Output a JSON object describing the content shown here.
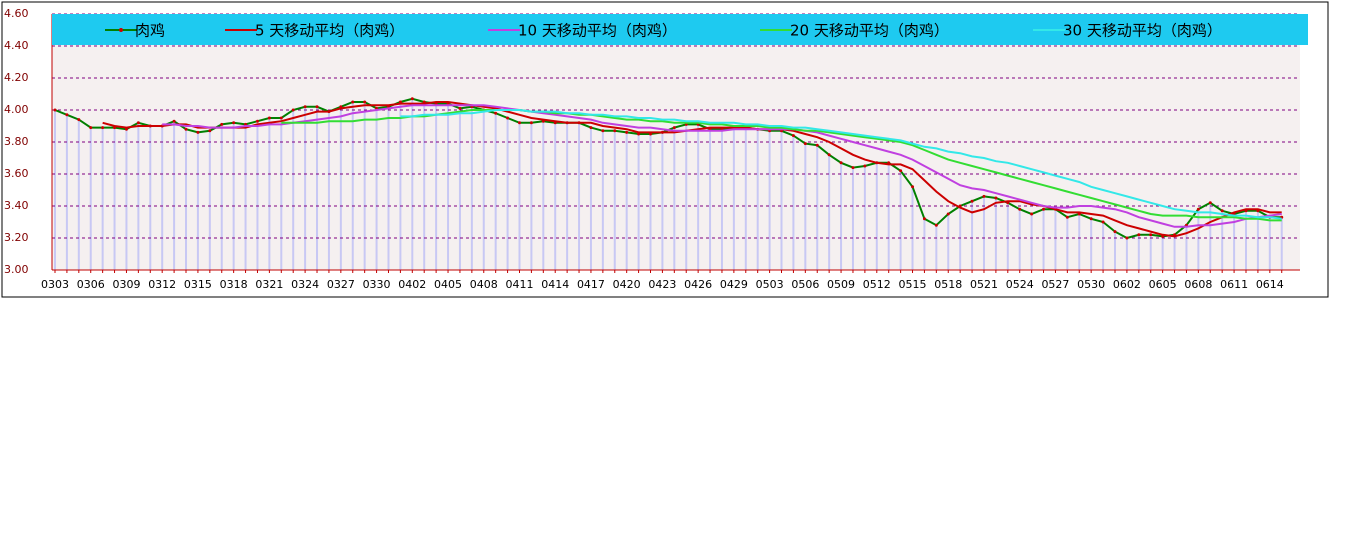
{
  "chart_data": {
    "type": "line",
    "categories": [
      "0303",
      null,
      null,
      "0306",
      null,
      null,
      "0309",
      null,
      null,
      "0312",
      null,
      null,
      "0315",
      null,
      null,
      "0318",
      null,
      null,
      "0321",
      null,
      null,
      "0324",
      null,
      null,
      "0327",
      null,
      null,
      "0330",
      null,
      null,
      "0402",
      null,
      null,
      "0405",
      null,
      null,
      "0408",
      null,
      null,
      "0411",
      null,
      null,
      "0414",
      null,
      null,
      "0417",
      null,
      null,
      "0420",
      null,
      null,
      "0423",
      null,
      null,
      "0426",
      null,
      null,
      "0429",
      null,
      null,
      "0503",
      null,
      null,
      "0506",
      null,
      null,
      "0509",
      null,
      null,
      "0512",
      null,
      null,
      "0515",
      null,
      null,
      "0518",
      null,
      null,
      "0521",
      null,
      null,
      "0524",
      null,
      null,
      "0527",
      null,
      null,
      "0530",
      null,
      null,
      "0602",
      null,
      null,
      "0605",
      null,
      null,
      "0608",
      null,
      null,
      "0611",
      null,
      null,
      "0614",
      null
    ],
    "series": [
      {
        "name": "肉鸡",
        "color": "#008000",
        "marker_color": "#cc0000",
        "values": [
          4.0,
          3.97,
          3.94,
          3.89,
          3.89,
          3.89,
          3.88,
          3.92,
          3.9,
          3.9,
          3.93,
          3.88,
          3.86,
          3.87,
          3.91,
          3.92,
          3.91,
          3.93,
          3.95,
          3.95,
          4.0,
          4.02,
          4.02,
          3.99,
          4.02,
          4.05,
          4.05,
          4.01,
          4.02,
          4.05,
          4.07,
          4.05,
          4.04,
          4.04,
          4.01,
          4.02,
          4.0,
          3.98,
          3.95,
          3.92,
          3.92,
          3.93,
          3.92,
          3.92,
          3.92,
          3.89,
          3.87,
          3.87,
          3.86,
          3.85,
          3.85,
          3.86,
          3.89,
          3.91,
          3.91,
          3.88,
          3.88,
          3.89,
          3.89,
          3.88,
          3.87,
          3.87,
          3.84,
          3.79,
          3.78,
          3.72,
          3.67,
          3.64,
          3.65,
          3.67,
          3.67,
          3.62,
          3.52,
          3.32,
          3.28,
          3.35,
          3.4,
          3.43,
          3.46,
          3.45,
          3.42,
          3.38,
          3.35,
          3.38,
          3.38,
          3.33,
          3.35,
          3.32,
          3.3,
          3.24,
          3.2,
          3.22,
          3.22,
          3.21,
          3.22,
          3.28,
          3.38,
          3.42,
          3.37,
          3.35,
          3.37,
          3.37,
          3.33,
          3.33
        ]
      },
      {
        "name": "5 天移动平均（肉鸡）",
        "color": "#cc0000",
        "values": [
          null,
          null,
          null,
          null,
          3.92,
          3.9,
          3.89,
          3.9,
          3.9,
          3.9,
          3.91,
          3.91,
          3.89,
          3.89,
          3.89,
          3.89,
          3.89,
          3.91,
          3.92,
          3.93,
          3.95,
          3.97,
          3.99,
          3.99,
          4.01,
          4.02,
          4.03,
          4.03,
          4.03,
          4.04,
          4.04,
          4.04,
          4.05,
          4.05,
          4.04,
          4.03,
          4.02,
          4.01,
          3.99,
          3.97,
          3.95,
          3.94,
          3.93,
          3.92,
          3.92,
          3.92,
          3.9,
          3.89,
          3.88,
          3.86,
          3.86,
          3.86,
          3.86,
          3.87,
          3.88,
          3.89,
          3.89,
          3.89,
          3.89,
          3.88,
          3.88,
          3.88,
          3.87,
          3.85,
          3.83,
          3.8,
          3.76,
          3.72,
          3.69,
          3.67,
          3.66,
          3.66,
          3.63,
          3.56,
          3.49,
          3.43,
          3.39,
          3.36,
          3.38,
          3.42,
          3.43,
          3.43,
          3.41,
          3.4,
          3.38,
          3.36,
          3.36,
          3.35,
          3.34,
          3.31,
          3.28,
          3.26,
          3.24,
          3.22,
          3.21,
          3.23,
          3.26,
          3.3,
          3.33,
          3.36,
          3.38,
          3.38,
          3.36,
          3.36
        ]
      },
      {
        "name": "10 天移动平均（肉鸡）",
        "color": "#c040e0",
        "values": [
          null,
          null,
          null,
          null,
          null,
          null,
          null,
          null,
          null,
          3.91,
          3.91,
          3.9,
          3.9,
          3.89,
          3.89,
          3.89,
          3.9,
          3.9,
          3.91,
          3.91,
          3.92,
          3.93,
          3.94,
          3.95,
          3.96,
          3.98,
          3.99,
          4.0,
          4.01,
          4.02,
          4.03,
          4.03,
          4.03,
          4.03,
          4.03,
          4.03,
          4.03,
          4.02,
          4.01,
          4.0,
          3.99,
          3.98,
          3.97,
          3.96,
          3.95,
          3.94,
          3.92,
          3.91,
          3.9,
          3.89,
          3.89,
          3.88,
          3.87,
          3.87,
          3.87,
          3.87,
          3.87,
          3.88,
          3.88,
          3.88,
          3.88,
          3.88,
          3.88,
          3.87,
          3.86,
          3.84,
          3.82,
          3.8,
          3.78,
          3.76,
          3.74,
          3.72,
          3.69,
          3.65,
          3.61,
          3.57,
          3.53,
          3.51,
          3.5,
          3.48,
          3.46,
          3.44,
          3.42,
          3.4,
          3.39,
          3.39,
          3.4,
          3.4,
          3.39,
          3.38,
          3.36,
          3.33,
          3.31,
          3.29,
          3.27,
          3.27,
          3.28,
          3.28,
          3.29,
          3.3,
          3.32,
          3.33,
          3.34,
          3.35
        ]
      },
      {
        "name": "20 天移动平均（肉鸡）",
        "color": "#33dd33",
        "values": [
          null,
          null,
          null,
          null,
          null,
          null,
          null,
          null,
          null,
          null,
          null,
          null,
          null,
          null,
          null,
          null,
          null,
          null,
          null,
          3.92,
          3.92,
          3.92,
          3.92,
          3.93,
          3.93,
          3.93,
          3.94,
          3.94,
          3.95,
          3.95,
          3.96,
          3.96,
          3.97,
          3.98,
          3.99,
          4.0,
          4.0,
          4.0,
          4.0,
          4.0,
          3.99,
          3.99,
          3.98,
          3.98,
          3.97,
          3.97,
          3.96,
          3.95,
          3.94,
          3.94,
          3.93,
          3.93,
          3.92,
          3.92,
          3.92,
          3.91,
          3.91,
          3.9,
          3.9,
          3.9,
          3.89,
          3.89,
          3.88,
          3.87,
          3.87,
          3.86,
          3.85,
          3.84,
          3.83,
          3.82,
          3.81,
          3.8,
          3.78,
          3.75,
          3.72,
          3.69,
          3.67,
          3.65,
          3.63,
          3.61,
          3.59,
          3.57,
          3.55,
          3.53,
          3.51,
          3.49,
          3.47,
          3.45,
          3.43,
          3.41,
          3.39,
          3.37,
          3.35,
          3.34,
          3.34,
          3.34,
          3.33,
          3.33,
          3.33,
          3.33,
          3.32,
          3.32,
          3.31,
          3.31
        ]
      },
      {
        "name": "30 天移动平均（肉鸡）",
        "color": "#33e8e8",
        "values": [
          null,
          null,
          null,
          null,
          null,
          null,
          null,
          null,
          null,
          null,
          null,
          null,
          null,
          null,
          null,
          null,
          null,
          null,
          null,
          null,
          null,
          null,
          null,
          null,
          null,
          null,
          null,
          null,
          null,
          3.96,
          3.96,
          3.97,
          3.97,
          3.97,
          3.98,
          3.98,
          3.99,
          4.0,
          4.0,
          4.0,
          3.99,
          3.99,
          3.99,
          3.98,
          3.98,
          3.97,
          3.97,
          3.96,
          3.96,
          3.95,
          3.95,
          3.94,
          3.94,
          3.93,
          3.93,
          3.92,
          3.92,
          3.92,
          3.91,
          3.91,
          3.9,
          3.9,
          3.89,
          3.89,
          3.88,
          3.87,
          3.86,
          3.85,
          3.84,
          3.83,
          3.82,
          3.81,
          3.79,
          3.77,
          3.76,
          3.74,
          3.73,
          3.71,
          3.7,
          3.68,
          3.67,
          3.65,
          3.63,
          3.61,
          3.59,
          3.57,
          3.55,
          3.52,
          3.5,
          3.48,
          3.46,
          3.44,
          3.42,
          3.4,
          3.38,
          3.37,
          3.36,
          3.36,
          3.35,
          3.34,
          3.34,
          3.33,
          3.33,
          3.32
        ]
      }
    ],
    "ylim": [
      3,
      4.6
    ],
    "yticks": [
      {
        "value": 3,
        "label": "3.00"
      },
      {
        "value": 3.2,
        "label": "3.20"
      },
      {
        "value": 3.4,
        "label": "3.40"
      },
      {
        "value": 3.6,
        "label": "3.60"
      },
      {
        "value": 3.8,
        "label": "3.80"
      },
      {
        "value": 4,
        "label": "4.00"
      },
      {
        "value": 4.2,
        "label": "4.20"
      },
      {
        "value": 4.4,
        "label": "4.40"
      },
      {
        "value": 4.6,
        "label": "4.60"
      }
    ],
    "grid": true,
    "legend": "top"
  }
}
